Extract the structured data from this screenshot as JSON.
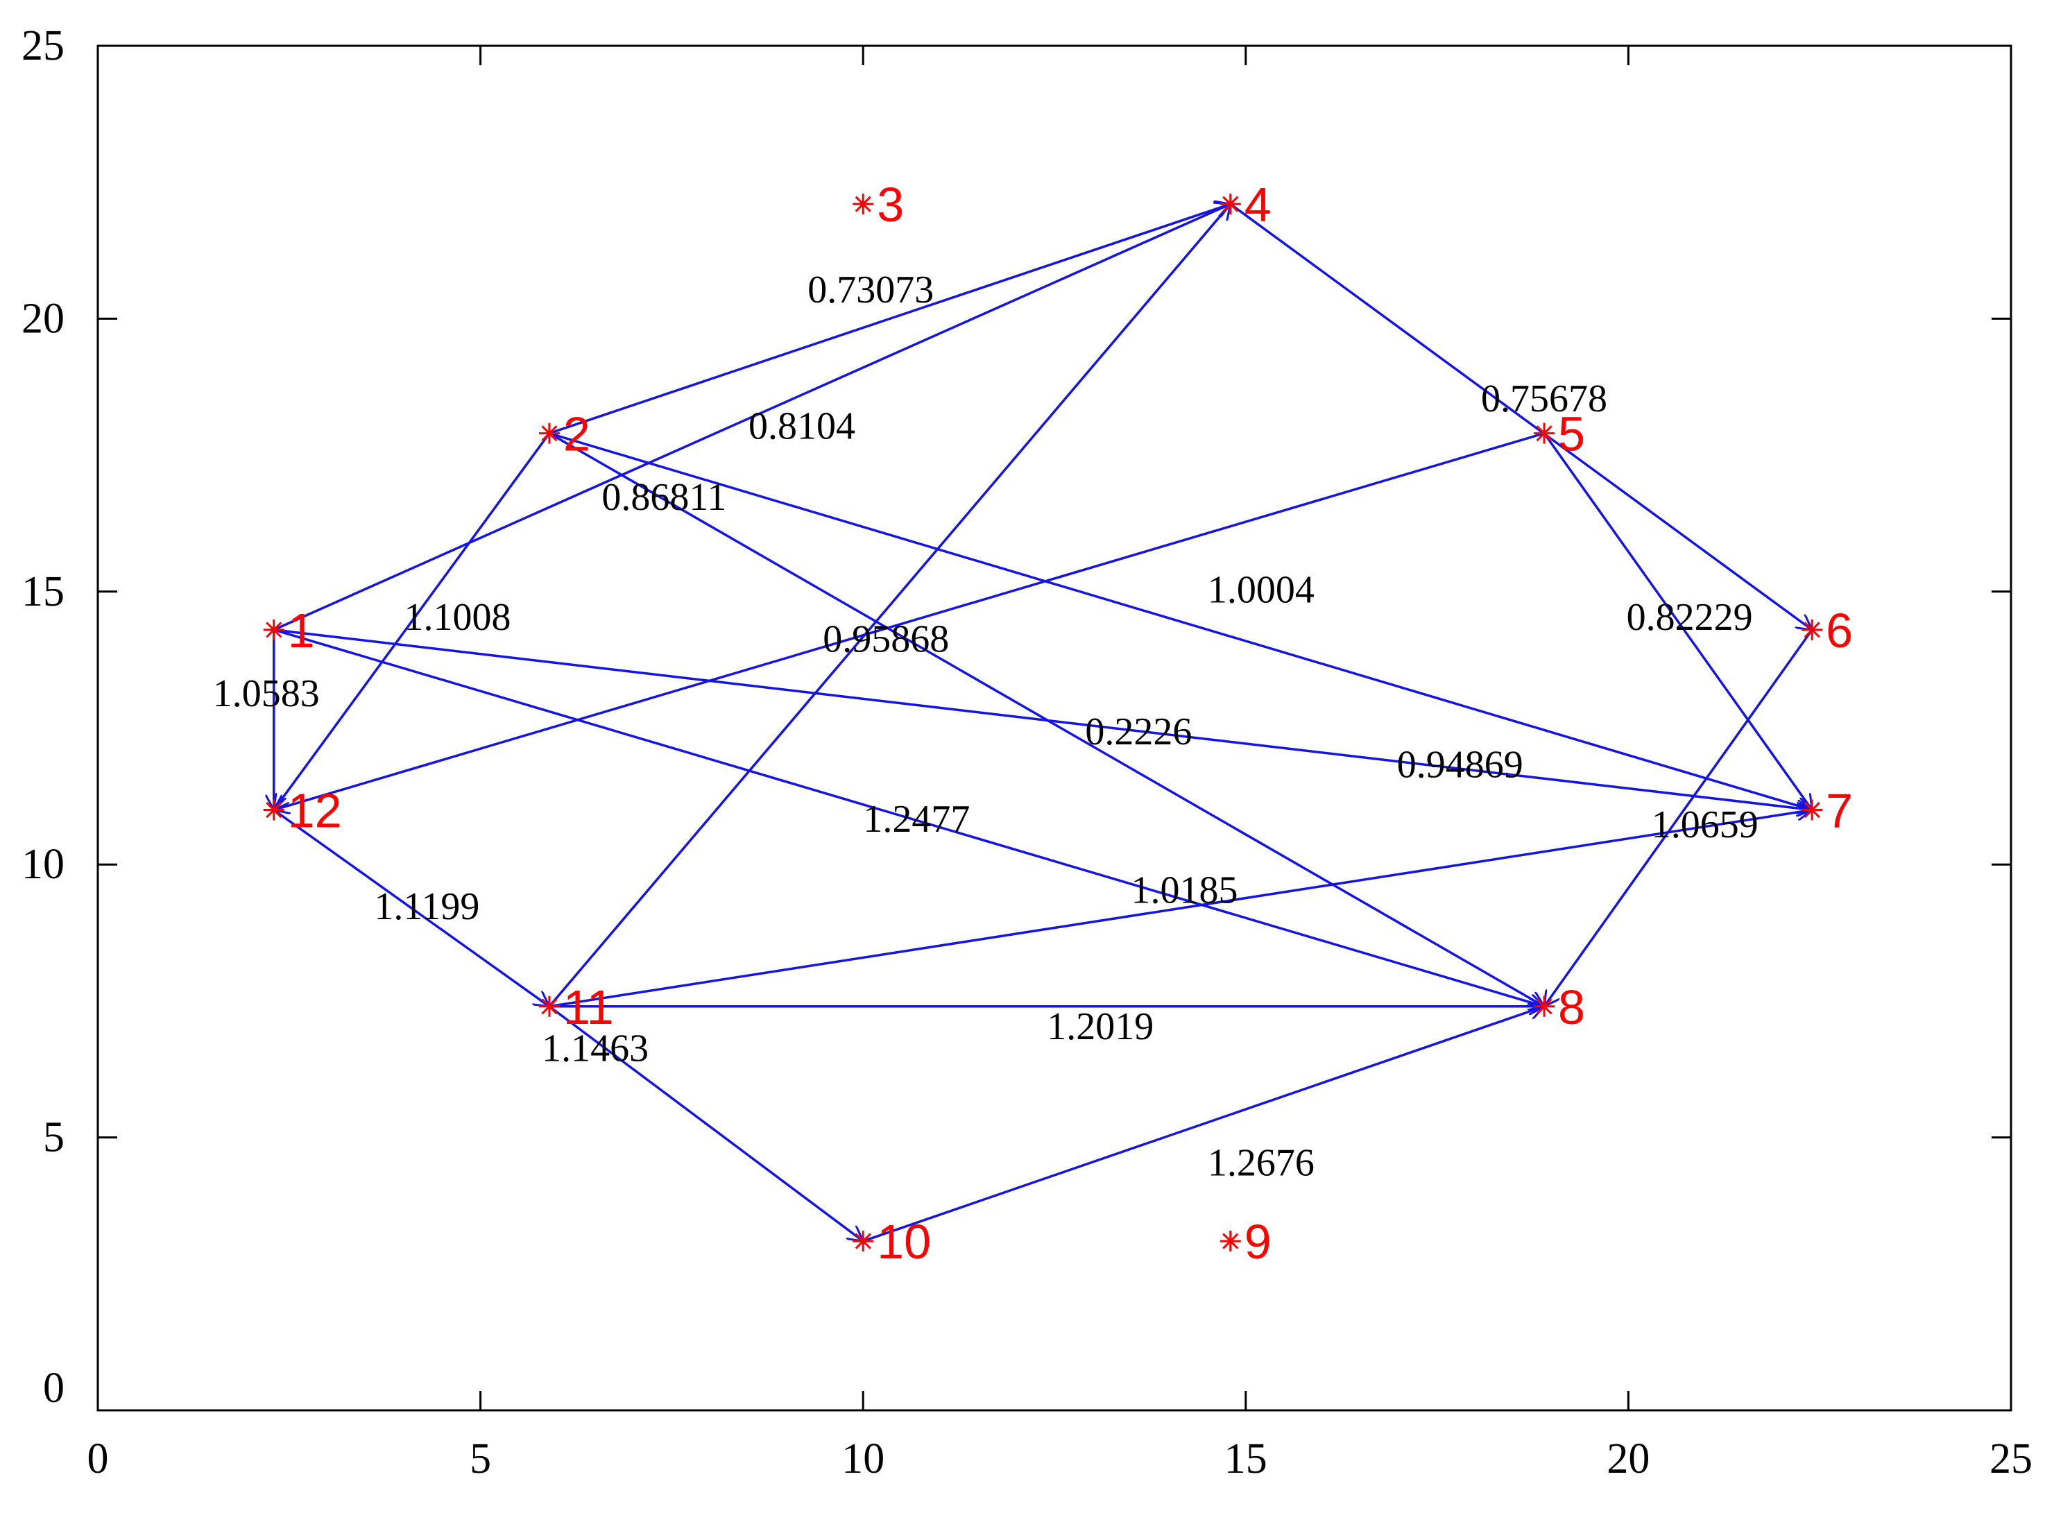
{
  "chart_data": {
    "type": "scatter",
    "title": "",
    "xlabel": "",
    "ylabel": "",
    "xlim": [
      0,
      25
    ],
    "ylim": [
      0,
      25
    ],
    "xticks": [
      0,
      5,
      10,
      15,
      20,
      25
    ],
    "yticks": [
      0,
      5,
      10,
      15,
      20,
      25
    ],
    "grid": false,
    "colors": {
      "node": "#ff0000",
      "edge": "#1414e6",
      "axis": "#000000"
    },
    "nodes": [
      {
        "id": "1",
        "x": 2.3,
        "y": 14.3
      },
      {
        "id": "2",
        "x": 5.9,
        "y": 17.9
      },
      {
        "id": "3",
        "x": 10.0,
        "y": 22.1
      },
      {
        "id": "4",
        "x": 14.8,
        "y": 22.1
      },
      {
        "id": "5",
        "x": 18.9,
        "y": 17.9
      },
      {
        "id": "6",
        "x": 22.4,
        "y": 14.3
      },
      {
        "id": "7",
        "x": 22.4,
        "y": 11.0
      },
      {
        "id": "8",
        "x": 18.9,
        "y": 7.4
      },
      {
        "id": "9",
        "x": 14.8,
        "y": 3.1
      },
      {
        "id": "10",
        "x": 10.0,
        "y": 3.1
      },
      {
        "id": "11",
        "x": 5.9,
        "y": 7.4
      },
      {
        "id": "12",
        "x": 2.3,
        "y": 11.0
      }
    ],
    "edges": [
      {
        "from": "2",
        "to": "4",
        "weight": "0.73073",
        "label_at": [
          10.1,
          20.3
        ]
      },
      {
        "from": "1",
        "to": "4",
        "weight": "0.8104",
        "label_at": [
          9.2,
          17.8
        ]
      },
      {
        "from": "4",
        "to": "6",
        "weight": "0.75678",
        "label_at": [
          18.9,
          18.3
        ]
      },
      {
        "from": "2",
        "to": "8",
        "weight": "0.86811",
        "label_at": [
          7.4,
          16.5
        ]
      },
      {
        "from": "2",
        "to": "7",
        "weight": "1.0004",
        "label_at": [
          15.2,
          14.8
        ]
      },
      {
        "from": "5",
        "to": "7",
        "weight": "0.82229",
        "label_at": [
          20.8,
          14.3
        ]
      },
      {
        "from": "2",
        "to": "12",
        "weight": "1.0583",
        "label_at": [
          2.2,
          12.9
        ]
      },
      {
        "from": "1",
        "to": "12",
        "weight": "",
        "label_at": null
      },
      {
        "from": "5",
        "to": "12",
        "weight": "0.95868",
        "label_at": [
          10.3,
          13.9
        ]
      },
      {
        "from": "11",
        "to": "4",
        "weight": "1.1008",
        "label_at": [
          4.7,
          14.3
        ]
      },
      {
        "from": "1",
        "to": "7",
        "weight": "0.2226",
        "label_at": [
          13.6,
          12.2
        ]
      },
      {
        "from": "11",
        "to": "7",
        "weight": "0.94869",
        "label_at": [
          17.8,
          11.6
        ]
      },
      {
        "from": "1",
        "to": "8",
        "weight": "1.2477",
        "label_at": [
          10.7,
          10.6
        ]
      },
      {
        "from": "6",
        "to": "8",
        "weight": "1.0659",
        "label_at": [
          21.0,
          10.5
        ]
      },
      {
        "from": "12",
        "to": "11",
        "weight": "1.1199",
        "label_at": [
          4.3,
          9.0
        ]
      },
      {
        "from": "11",
        "to": "8",
        "weight": "1.0185",
        "label_at": [
          14.2,
          9.3
        ]
      },
      {
        "from": "11",
        "to": "10",
        "weight": "1.2019",
        "label_at": [
          13.1,
          6.8
        ]
      },
      {
        "from": "10",
        "to": "8",
        "weight": "1.2676",
        "label_at": [
          15.2,
          4.3
        ]
      },
      {
        "from": "11",
        "to": "11",
        "weight": "1.1463",
        "label_at": [
          6.5,
          6.4
        ]
      }
    ]
  }
}
